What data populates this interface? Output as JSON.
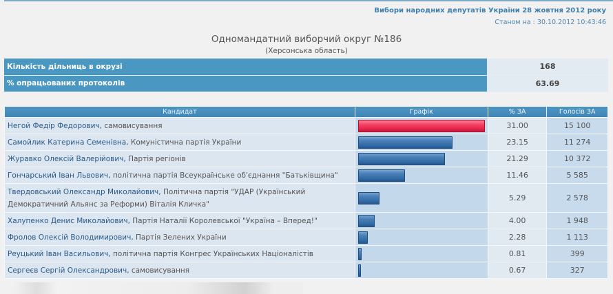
{
  "header": {
    "election_title": "Вибори народних депутатів України 28 жовтня 2012 року",
    "status_label": "Станом на :",
    "status_datetime": "30.10.2012 10:43:46"
  },
  "district": {
    "title": "Одномандатний виборчий округ №186",
    "region": "(Херсонська область)"
  },
  "summary": [
    {
      "label": "Кількість дільниць в окрузі",
      "value": "168"
    },
    {
      "label": "% опрацьованих протоколів",
      "value": "63.69"
    }
  ],
  "results": {
    "columns": [
      "Кандидат",
      "Графік",
      "% ЗА",
      "Голосів ЗА"
    ],
    "colors": {
      "leader_bar": "#e8294e",
      "bar": "#3a6ea8",
      "header_bg": "#4a98c2"
    },
    "rows": [
      {
        "name": "Негой Федір Федорович,",
        "party": "самовисування",
        "pct": "31.00",
        "votes": "15 100"
      },
      {
        "name": "Самойлик Катерина Семенівна,",
        "party": "Комуністична партія України",
        "pct": "23.15",
        "votes": "11 274"
      },
      {
        "name": "Журавко Олексій Валерійович,",
        "party": "Партія регіонів",
        "pct": "21.29",
        "votes": "10 372"
      },
      {
        "name": "Гончарський Іван Львович,",
        "party": "політична партія Всеукраїнське об'єднання \"Батьківщина\"",
        "pct": "11.46",
        "votes": "5 585"
      },
      {
        "name": "Твердовський Олександр Миколайович,",
        "party": "Політична партія \"УДАР (Український Демократичний Альянс за Реформи) Віталія Кличка\"",
        "pct": "5.29",
        "votes": "2 578"
      },
      {
        "name": "Халупенко Денис Миколайович,",
        "party": "Партія Наталії Королевської \"Україна – Вперед!\"",
        "pct": "4.00",
        "votes": "1 948"
      },
      {
        "name": "Фролов Олексій Володимирович,",
        "party": "Партія Зелених України",
        "pct": "2.28",
        "votes": "1 113"
      },
      {
        "name": "Реуцький Іван Васильович,",
        "party": "політична партія Конгрес Українських Націоналістів",
        "pct": "0.81",
        "votes": "399"
      },
      {
        "name": "Сергеєв Сергій Олександрович,",
        "party": "самовисування",
        "pct": "0.67",
        "votes": "327"
      }
    ]
  },
  "chart_data": {
    "type": "bar",
    "title": "Графік",
    "categories": [
      "Негой Ф.Ф.",
      "Самойлик К.С.",
      "Журавко О.В.",
      "Гончарський І.Л.",
      "Твердовський О.М.",
      "Халупенко Д.М.",
      "Фролов О.В.",
      "Реуцький І.В.",
      "Сергеєв С.О."
    ],
    "series": [
      {
        "name": "% ЗА",
        "values": [
          31.0,
          23.15,
          21.29,
          11.46,
          5.29,
          4.0,
          2.28,
          0.81,
          0.67
        ]
      },
      {
        "name": "Голосів ЗА",
        "values": [
          15100,
          11274,
          10372,
          5585,
          2578,
          1948,
          1113,
          399,
          327
        ]
      }
    ],
    "orientation": "horizontal",
    "xlim": [
      0,
      31.0
    ]
  }
}
